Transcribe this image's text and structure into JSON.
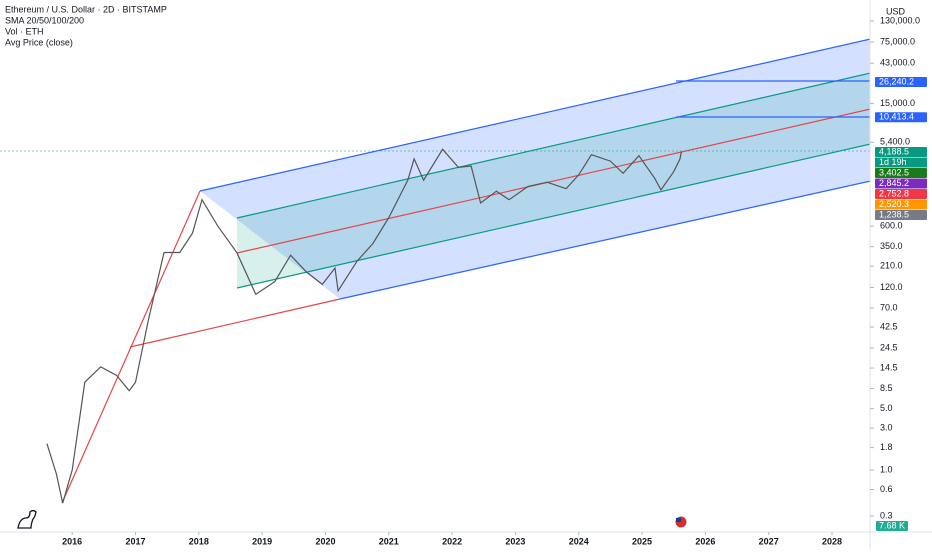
{
  "chart_data": {
    "type": "line",
    "title": "Ethereum / U.S. Dollar · 2D · BITSTAMP",
    "indicators": [
      "SMA 20/50/100/200",
      "Vol · ETH",
      "Avg Price (close)"
    ],
    "y_axis_label": "USD",
    "log_scale": true,
    "xlim": [
      2014.86,
      2028.6
    ],
    "xticks": [
      2016,
      2017,
      2018,
      2019,
      2020,
      2021,
      2022,
      2023,
      2024,
      2025,
      2026,
      2027,
      2028
    ],
    "ylim": [
      0.2,
      175000
    ],
    "yticks": [
      {
        "value": 130000,
        "label": "130,000.0"
      },
      {
        "value": 75000,
        "label": "75,000.0"
      },
      {
        "value": 43000,
        "label": "43,000.0"
      },
      {
        "value": 15000,
        "label": "15,000.0"
      },
      {
        "value": 5400,
        "label": "5,400.0"
      },
      {
        "value": 600,
        "label": "600.0"
      },
      {
        "value": 350,
        "label": "350.0"
      },
      {
        "value": 210,
        "label": "210.0"
      },
      {
        "value": 120,
        "label": "120.0"
      },
      {
        "value": 70,
        "label": "70.0"
      },
      42.5,
      24.5,
      14.5,
      8.5,
      {
        "value": 5,
        "label": "5.0"
      },
      {
        "value": 3,
        "label": "3.0"
      },
      1.8,
      {
        "value": 1,
        "label": "1.0"
      },
      0.6,
      0.3
    ],
    "series": [
      {
        "name": "ETHUSD",
        "color": "#555555",
        "x": [
          2015.6,
          2015.75,
          2015.85,
          2016.0,
          2016.2,
          2016.45,
          2016.7,
          2016.9,
          2017.0,
          2017.2,
          2017.45,
          2017.7,
          2017.9,
          2018.05,
          2018.3,
          2018.6,
          2018.9,
          2019.2,
          2019.45,
          2019.7,
          2019.95,
          2020.15,
          2020.2,
          2020.5,
          2020.75,
          2021.0,
          2021.3,
          2021.4,
          2021.55,
          2021.85,
          2022.1,
          2022.3,
          2022.45,
          2022.7,
          2022.9,
          2023.2,
          2023.5,
          2023.8,
          2024.0,
          2024.2,
          2024.5,
          2024.7,
          2024.95,
          2025.2,
          2025.3,
          2025.5,
          2025.6,
          2025.62
        ],
        "values": [
          2.0,
          0.9,
          0.42,
          1.0,
          10,
          15,
          12,
          8,
          10,
          50,
          300,
          300,
          500,
          1200,
          600,
          300,
          100,
          140,
          280,
          180,
          130,
          200,
          110,
          240,
          380,
          750,
          2000,
          3500,
          2000,
          4500,
          2800,
          2900,
          1100,
          1500,
          1200,
          1700,
          1900,
          1600,
          2300,
          3900,
          3300,
          2400,
          3800,
          2100,
          1550,
          2500,
          3500,
          4188.5
        ]
      }
    ],
    "price_labels": [
      {
        "value": 26240.2,
        "label": "26,240.2",
        "color": "#2962ff"
      },
      {
        "value": 10413.4,
        "label": "10,413.4",
        "color": "#2962ff"
      },
      {
        "value": 4188.5,
        "label": "4,188.5",
        "color": "#089981"
      },
      {
        "value": 3402.5,
        "label": "3,402.5",
        "color": "#1b7a1b"
      },
      {
        "value": 2845.2,
        "label": "2,845.2",
        "color": "#7b2cbf"
      },
      {
        "value": 2752.8,
        "label": "2,752.8",
        "color": "#f23645"
      },
      {
        "value": 2520.3,
        "label": "2,520.3",
        "color": "#ff9800"
      },
      {
        "value": 1238.5,
        "label": "1,238.5",
        "color": "#787b86"
      }
    ],
    "countdown": "1d 19h",
    "volume_label": "7.68 K"
  }
}
